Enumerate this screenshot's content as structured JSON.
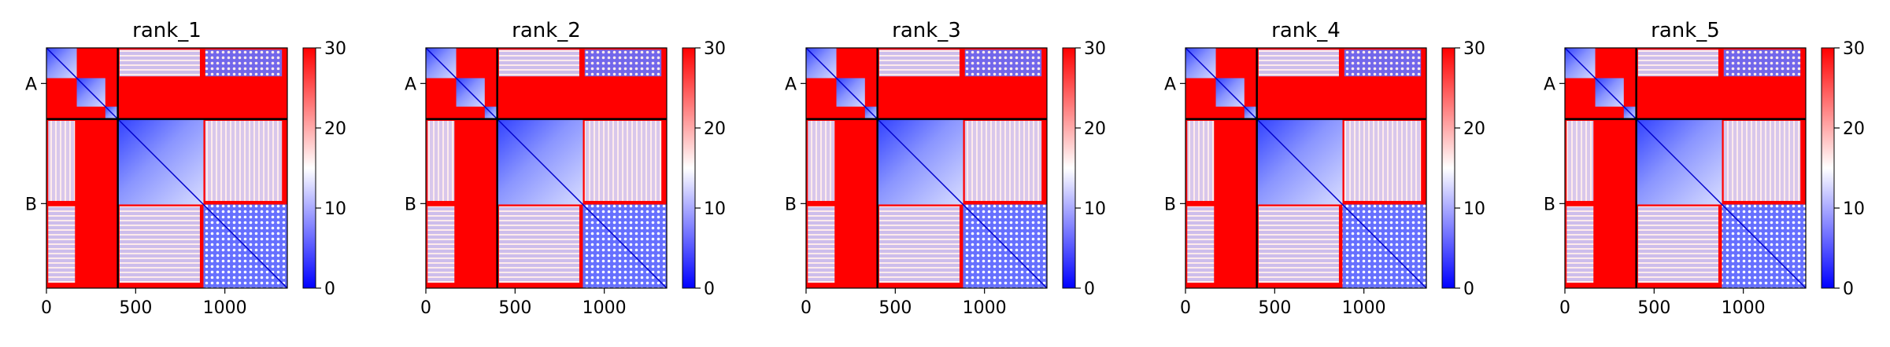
{
  "chart_data": {
    "type": "heatmap",
    "panel_titles": [
      "rank_1",
      "rank_2",
      "rank_3",
      "rank_4",
      "rank_5"
    ],
    "chain_labels": [
      "A",
      "B"
    ],
    "chain_boundary": 400,
    "total_residues": 1350,
    "x_ticks": [
      0,
      500,
      1000
    ],
    "x_tick_labels": [
      "0",
      "500",
      "1000"
    ],
    "colorbar": {
      "min": 0,
      "max": 30,
      "ticks": [
        0,
        10,
        20,
        30
      ],
      "tick_labels": [
        "0",
        "10",
        "20",
        "30"
      ],
      "colors": {
        "low": "#0000ff",
        "mid": "#ffffff",
        "high": "#ff0000"
      }
    },
    "domains": [
      [
        0,
        170
      ],
      [
        170,
        330
      ],
      [
        330,
        400
      ],
      [
        400,
        880
      ],
      [
        880,
        1350
      ]
    ],
    "grid": false,
    "legend": "none"
  }
}
